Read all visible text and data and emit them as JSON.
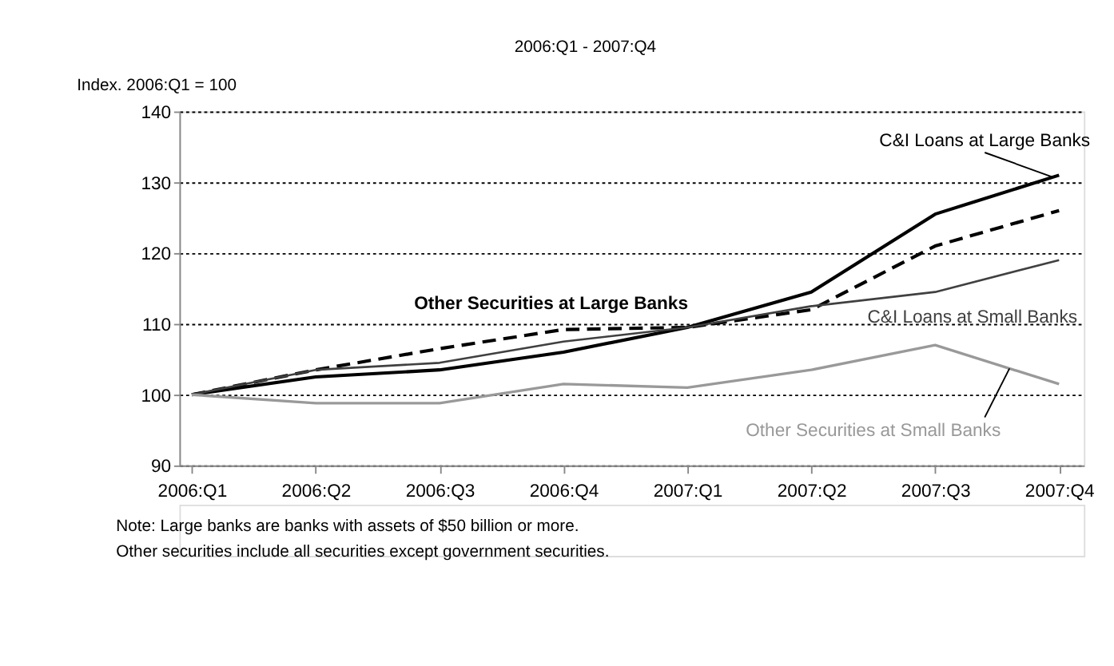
{
  "chart_data": {
    "type": "line",
    "title": "2006:Q1 - 2007:Q4",
    "ylabel": "Index. 2006:Q1 = 100",
    "categories": [
      "2006:Q1",
      "2006:Q2",
      "2006:Q3",
      "2006:Q4",
      "2007:Q1",
      "2007:Q2",
      "2007:Q3",
      "2007:Q4"
    ],
    "series": [
      {
        "name": "C&I Loans at Large Banks",
        "color": "#000000",
        "line_style": "solid",
        "values": [
          100,
          102.5,
          103.5,
          106,
          109.5,
          114.5,
          125.5,
          131
        ]
      },
      {
        "name": "Other Securities at Large Banks",
        "color": "#000000",
        "line_style": "dashed",
        "values": [
          100,
          103.5,
          106.5,
          109.2,
          109.5,
          112,
          121,
          126
        ]
      },
      {
        "name": "C&I Loans at Small Banks",
        "color": "#404040",
        "line_style": "solid",
        "values": [
          100,
          103.5,
          104.5,
          107.5,
          109.5,
          112.5,
          114.5,
          119
        ]
      },
      {
        "name": "Other Securities at Small Banks",
        "color": "#999999",
        "line_style": "solid",
        "values": [
          100,
          98.8,
          98.8,
          101.5,
          101,
          103.5,
          107,
          101.5
        ]
      }
    ],
    "ylim": [
      90,
      140
    ],
    "yticks": [
      90,
      100,
      110,
      120,
      130,
      140
    ],
    "grid": "y",
    "legend": false,
    "marker": "none",
    "annotations": [
      "Note:  Large banks are banks with assets of $50 billion or more.",
      "Other securities include all securities except government securities."
    ]
  }
}
